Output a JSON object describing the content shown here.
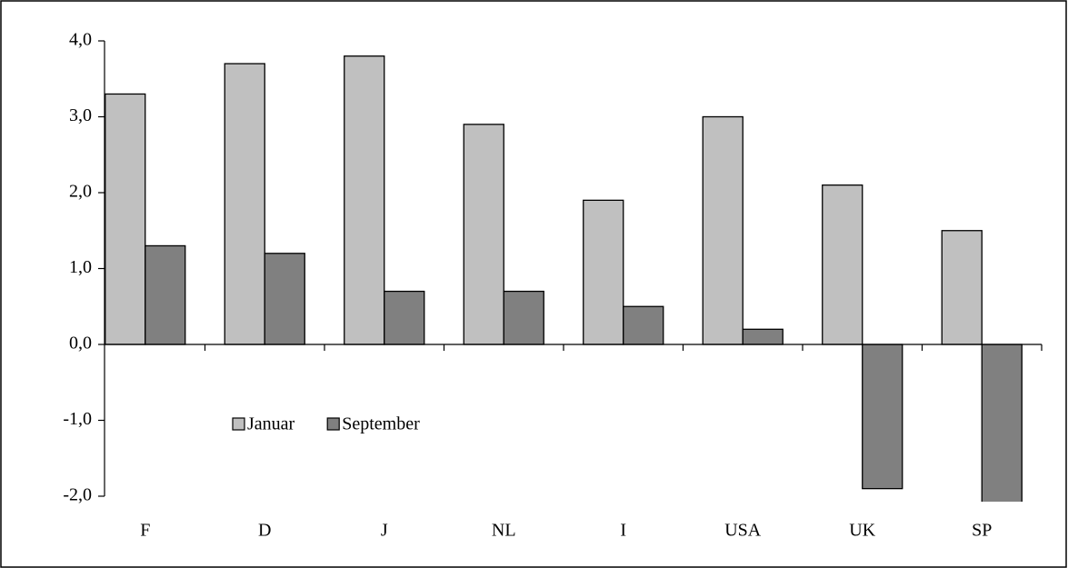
{
  "chart_data": {
    "type": "bar",
    "categories": [
      "F",
      "D",
      "J",
      "NL",
      "I",
      "USA",
      "UK",
      "SP"
    ],
    "series": [
      {
        "name": "Januar",
        "color": "#c0c0c0",
        "values": [
          3.3,
          3.7,
          3.8,
          2.9,
          1.9,
          3.0,
          2.1,
          1.5
        ]
      },
      {
        "name": "September",
        "color": "#808080",
        "values": [
          1.3,
          1.2,
          0.7,
          0.7,
          0.5,
          0.2,
          -1.9,
          -2.1
        ]
      }
    ],
    "ylim": [
      -2,
      4
    ],
    "yticks": [
      {
        "value": -2,
        "label": "-2,0"
      },
      {
        "value": -1,
        "label": "-1,0"
      },
      {
        "value": 0,
        "label": "0,0"
      },
      {
        "value": 1,
        "label": "1,0"
      },
      {
        "value": 2,
        "label": "2,0"
      },
      {
        "value": 3,
        "label": "3,0"
      },
      {
        "value": 4,
        "label": "4,0"
      }
    ],
    "grid": false,
    "legend": "inside-lower-left"
  }
}
